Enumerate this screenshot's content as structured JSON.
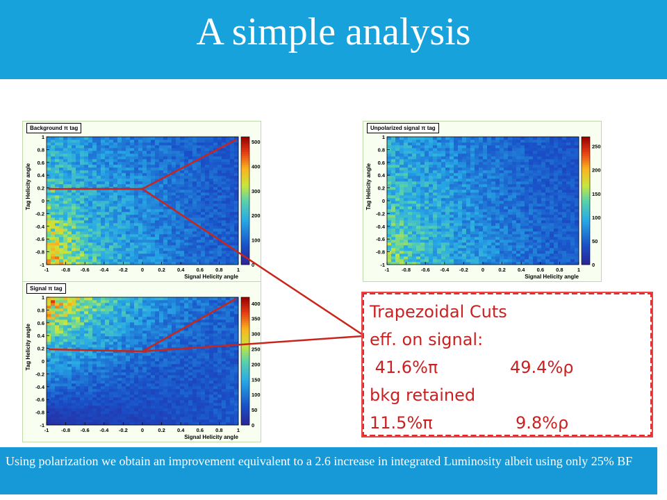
{
  "slide": {
    "title": "A simple analysis",
    "callout": {
      "heading": "Trapezoidal Cuts",
      "line2": "eff. on signal:",
      "line3_a": " 41.6%π",
      "line3_b": "49.4%ρ",
      "line4": "bkg retained",
      "line5_a": "11.5%π",
      "line5_b": "9.8%ρ"
    },
    "footer": "Using polarization we obtain an improvement equivalent to a  2.6 increase in integrated Luminosity albeit using only 25% BF"
  },
  "chart_data": [
    {
      "type": "heatmap",
      "title": "Background π tag",
      "xlabel": "Signal Helicity angle",
      "ylabel": "Tag Helicity angle",
      "xlim": [
        -1,
        1
      ],
      "ylim": [
        -1,
        1
      ],
      "x_ticks": [
        "-1",
        "-0.8",
        "-0.6",
        "-0.4",
        "-0.2",
        "0",
        "0.2",
        "0.4",
        "0.6",
        "0.8",
        "1"
      ],
      "y_ticks": [
        "-1",
        "-0.8",
        "-0.6",
        "-0.4",
        "-0.2",
        "0",
        "0.2",
        "0.4",
        "0.6",
        "0.8",
        "1"
      ],
      "colorbar_ticks": [
        "0",
        "100",
        "200",
        "300",
        "400",
        "500"
      ],
      "zlim": [
        0,
        520
      ],
      "density_grid": [
        [
          390,
          300,
          240,
          200,
          175,
          150,
          130,
          110,
          100,
          90
        ],
        [
          360,
          285,
          230,
          195,
          170,
          150,
          130,
          110,
          100,
          90
        ],
        [
          320,
          265,
          215,
          185,
          165,
          145,
          125,
          110,
          100,
          90
        ],
        [
          290,
          245,
          205,
          180,
          160,
          140,
          125,
          110,
          95,
          85
        ],
        [
          265,
          230,
          195,
          175,
          155,
          140,
          120,
          105,
          95,
          85
        ],
        [
          245,
          215,
          185,
          165,
          150,
          135,
          120,
          105,
          95,
          85
        ],
        [
          230,
          200,
          175,
          160,
          145,
          130,
          115,
          105,
          95,
          85
        ],
        [
          215,
          190,
          170,
          150,
          140,
          125,
          115,
          100,
          90,
          85
        ],
        [
          200,
          180,
          160,
          145,
          135,
          120,
          110,
          100,
          90,
          80
        ],
        [
          190,
          170,
          155,
          140,
          130,
          115,
          105,
          95,
          90,
          80
        ]
      ]
    },
    {
      "type": "heatmap",
      "title": "Unpolarized signal π tag",
      "xlabel": "Signal Helicity angle",
      "ylabel": "Tag Helicity angle",
      "xlim": [
        -1,
        1
      ],
      "ylim": [
        -1,
        1
      ],
      "x_ticks": [
        "-1",
        "-0.8",
        "-0.6",
        "-0.4",
        "-0.2",
        "0",
        "0.2",
        "0.4",
        "0.6",
        "0.8",
        "1"
      ],
      "y_ticks": [
        "-1",
        "-0.8",
        "-0.6",
        "-0.4",
        "-0.2",
        "0",
        "0.2",
        "0.4",
        "0.6",
        "0.8",
        "1"
      ],
      "colorbar_ticks": [
        "0",
        "50",
        "100",
        "150",
        "200",
        "250"
      ],
      "zlim": [
        0,
        270
      ],
      "density_grid": [
        [
          140,
          125,
          110,
          95,
          85,
          75,
          65,
          58,
          52,
          48
        ],
        [
          135,
          120,
          108,
          95,
          85,
          75,
          65,
          58,
          52,
          48
        ],
        [
          130,
          118,
          105,
          92,
          82,
          72,
          64,
          56,
          50,
          46
        ],
        [
          125,
          115,
          102,
          90,
          80,
          70,
          62,
          55,
          50,
          45
        ],
        [
          120,
          110,
          100,
          88,
          78,
          68,
          60,
          54,
          48,
          44
        ],
        [
          115,
          105,
          95,
          85,
          75,
          66,
          58,
          52,
          47,
          43
        ],
        [
          110,
          100,
          92,
          82,
          72,
          64,
          56,
          50,
          46,
          42
        ],
        [
          105,
          96,
          88,
          78,
          70,
          62,
          55,
          49,
          45,
          41
        ],
        [
          100,
          92,
          84,
          75,
          68,
          60,
          53,
          48,
          44,
          40
        ],
        [
          95,
          88,
          80,
          72,
          65,
          58,
          52,
          47,
          43,
          39
        ]
      ]
    },
    {
      "type": "heatmap",
      "title": "Signal π tag",
      "xlabel": "Signal Helicity angle",
      "ylabel": "Tag Helicity angle",
      "xlim": [
        -1,
        1
      ],
      "ylim": [
        -1,
        1
      ],
      "x_ticks": [
        "-1",
        "-0.8",
        "-0.6",
        "-0.4",
        "-0.2",
        "0",
        "0.2",
        "0.4",
        "0.6",
        "0.8",
        "1"
      ],
      "y_ticks": [
        "-1",
        "-0.8",
        "-0.6",
        "-0.4",
        "-0.2",
        "0",
        "0.2",
        "0.4",
        "0.6",
        "0.8",
        "1"
      ],
      "colorbar_ticks": [
        "0",
        "50",
        "100",
        "150",
        "200",
        "250",
        "300",
        "350",
        "400"
      ],
      "zlim": [
        0,
        420
      ],
      "density_grid": [
        [
          20,
          30,
          35,
          40,
          45,
          50,
          55,
          60,
          65,
          70
        ],
        [
          40,
          45,
          48,
          50,
          52,
          55,
          58,
          62,
          66,
          70
        ],
        [
          70,
          68,
          66,
          64,
          62,
          62,
          63,
          65,
          68,
          72
        ],
        [
          100,
          92,
          85,
          78,
          72,
          68,
          66,
          66,
          68,
          72
        ],
        [
          130,
          118,
          105,
          95,
          85,
          78,
          72,
          70,
          70,
          72
        ],
        [
          160,
          145,
          128,
          112,
          100,
          88,
          80,
          75,
          72,
          72
        ],
        [
          200,
          175,
          152,
          132,
          115,
          100,
          88,
          80,
          76,
          74
        ],
        [
          240,
          205,
          175,
          150,
          130,
          112,
          98,
          88,
          80,
          76
        ],
        [
          285,
          240,
          200,
          170,
          145,
          125,
          108,
          95,
          85,
          80
        ],
        [
          320,
          270,
          225,
          188,
          160,
          138,
          118,
          102,
          90,
          82
        ]
      ]
    }
  ]
}
